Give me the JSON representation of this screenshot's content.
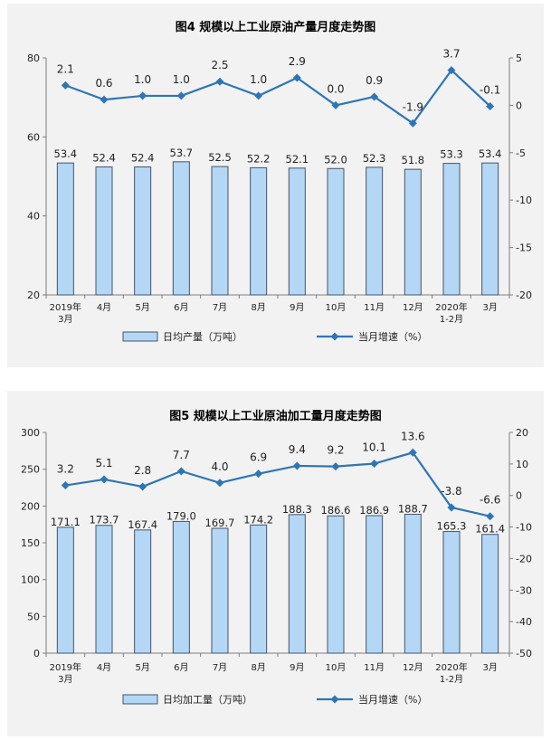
{
  "chart_data": [
    {
      "type": "bar",
      "title": "图4  规模以上工业原油产量月度走势图",
      "categories": [
        [
          "2019年",
          "3月"
        ],
        [
          "4月"
        ],
        [
          "5月"
        ],
        [
          "6月"
        ],
        [
          "7月"
        ],
        [
          "8月"
        ],
        [
          "9月"
        ],
        [
          "10月"
        ],
        [
          "11月"
        ],
        [
          "12月"
        ],
        [
          "2020年",
          "1-2月"
        ],
        [
          "3月"
        ]
      ],
      "left_axis": {
        "ylim": [
          20,
          80
        ],
        "ticks": [
          20,
          40,
          60,
          80
        ]
      },
      "right_axis": {
        "ylim": [
          -20,
          5
        ],
        "ticks": [
          -20,
          -15,
          -10,
          -5,
          0,
          5
        ]
      },
      "series": [
        {
          "name": "日均产量（万吨）",
          "type": "bar",
          "axis": "left",
          "values": [
            53.4,
            52.4,
            52.4,
            53.7,
            52.5,
            52.2,
            52.1,
            52.0,
            52.3,
            51.8,
            53.3,
            53.4
          ],
          "labels": [
            "53.4",
            "52.4",
            "52.4",
            "53.7",
            "52.5",
            "52.2",
            "52.1",
            "52.0",
            "52.3",
            "51.8",
            "53.3",
            "53.4"
          ]
        },
        {
          "name": "当月增速（%）",
          "type": "line",
          "axis": "right",
          "values": [
            2.1,
            0.6,
            1.0,
            1.0,
            2.5,
            1.0,
            2.9,
            0.0,
            0.9,
            -1.9,
            3.7,
            -0.1
          ],
          "labels": [
            "2.1",
            "0.6",
            "1.0",
            "1.0",
            "2.5",
            "1.0",
            "2.9",
            "0.0",
            "0.9",
            "-1.9",
            "3.7",
            "-0.1"
          ]
        }
      ],
      "legend_position": "bottom",
      "colors": {
        "bar_fill": "#b4d7f5",
        "bar_stroke": "#44546a",
        "line": "#2e75b6"
      }
    },
    {
      "type": "bar",
      "title": "图5  规模以上工业原油加工量月度走势图",
      "categories": [
        [
          "2019年",
          "3月"
        ],
        [
          "4月"
        ],
        [
          "5月"
        ],
        [
          "6月"
        ],
        [
          "7月"
        ],
        [
          "8月"
        ],
        [
          "9月"
        ],
        [
          "10月"
        ],
        [
          "11月"
        ],
        [
          "12月"
        ],
        [
          "2020年",
          "1-2月"
        ],
        [
          "3月"
        ]
      ],
      "left_axis": {
        "ylim": [
          0,
          300
        ],
        "ticks": [
          0,
          50,
          100,
          150,
          200,
          250,
          300
        ]
      },
      "right_axis": {
        "ylim": [
          -50,
          20
        ],
        "ticks": [
          -50,
          -40,
          -30,
          -20,
          -10,
          0,
          10,
          20
        ]
      },
      "series": [
        {
          "name": "日均加工量（万吨）",
          "type": "bar",
          "axis": "left",
          "values": [
            171.1,
            173.7,
            167.4,
            179.0,
            169.7,
            174.2,
            188.3,
            186.6,
            186.9,
            188.7,
            165.3,
            161.4
          ],
          "labels": [
            "171.1",
            "173.7",
            "167.4",
            "179.0",
            "169.7",
            "174.2",
            "188.3",
            "186.6",
            "186.9",
            "188.7",
            "165.3",
            "161.4"
          ]
        },
        {
          "name": "当月增速（%）",
          "type": "line",
          "axis": "right",
          "values": [
            3.2,
            5.1,
            2.8,
            7.7,
            4.0,
            6.9,
            9.4,
            9.2,
            10.1,
            13.6,
            -3.8,
            -6.6
          ],
          "labels": [
            "3.2",
            "5.1",
            "2.8",
            "7.7",
            "4.0",
            "6.9",
            "9.4",
            "9.2",
            "10.1",
            "13.6",
            "-3.8",
            "-6.6"
          ]
        }
      ],
      "legend_position": "bottom",
      "colors": {
        "bar_fill": "#b4d7f5",
        "bar_stroke": "#44546a",
        "line": "#2e75b6"
      }
    }
  ]
}
